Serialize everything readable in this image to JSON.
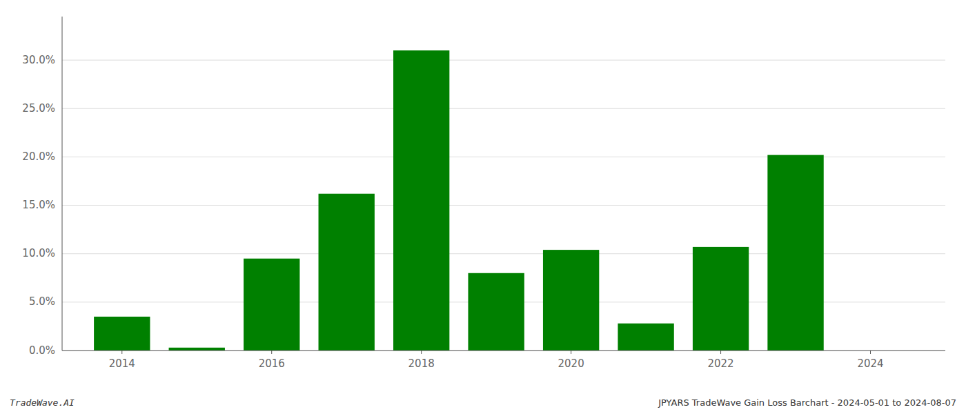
{
  "chart_data": {
    "type": "bar",
    "x": [
      2014,
      2015,
      2016,
      2017,
      2018,
      2019,
      2020,
      2021,
      2022,
      2023,
      2024
    ],
    "values": [
      0.035,
      0.003,
      0.095,
      0.162,
      0.31,
      0.08,
      0.104,
      0.028,
      0.107,
      0.202,
      0.0
    ],
    "color": "#008000",
    "xlim": [
      2013.2,
      2025.0
    ],
    "xticks": [
      2014,
      2016,
      2018,
      2020,
      2022,
      2024
    ],
    "ylim": [
      0.0,
      0.345
    ],
    "yticks": [
      {
        "value": 0.0,
        "label": "0.0%"
      },
      {
        "value": 0.05,
        "label": "5.0%"
      },
      {
        "value": 0.1,
        "label": "10.0%"
      },
      {
        "value": 0.15,
        "label": "15.0%"
      },
      {
        "value": 0.2,
        "label": "20.0%"
      },
      {
        "value": 0.25,
        "label": "25.0%"
      },
      {
        "value": 0.3,
        "label": "30.0%"
      }
    ],
    "grid": true,
    "annotations": [
      "TradeWave.AI",
      "JPYARS TradeWave Gain Loss Barchart - 2024-05-01 to 2024-08-07"
    ]
  }
}
